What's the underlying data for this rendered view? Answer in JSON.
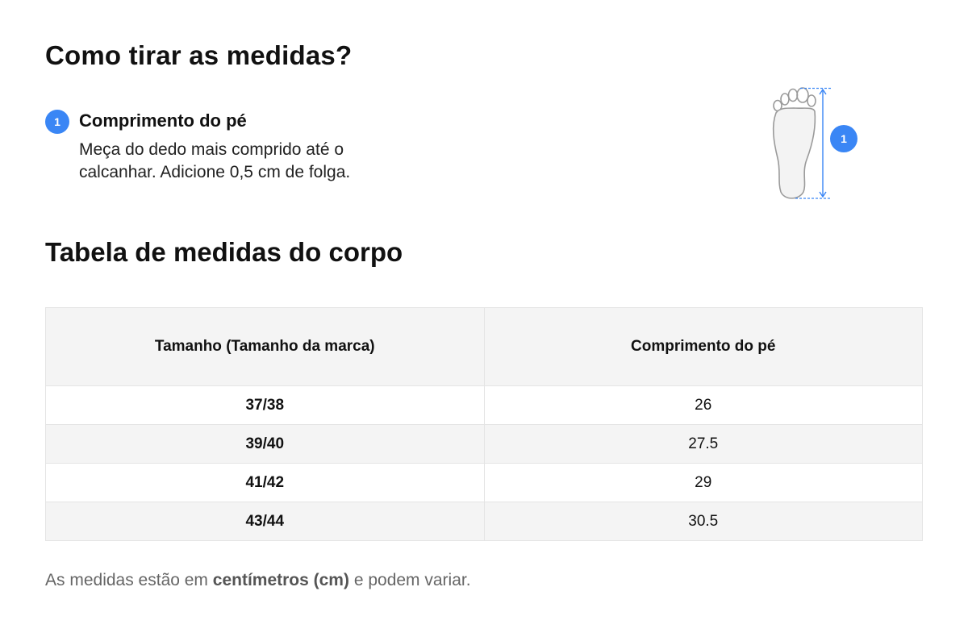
{
  "heading_how": "Como tirar as medidas?",
  "step": {
    "number": "1",
    "title": "Comprimento do pé",
    "description": "Meça do dedo mais comprido até o calcanhar. Adicione 0,5 cm de folga."
  },
  "figure": {
    "icon": "foot-outline-icon",
    "badge": "1",
    "accent_color": "#3a86f5"
  },
  "heading_table": "Tabela de medidas do corpo",
  "table": {
    "headers": [
      "Tamanho (Tamanho da marca)",
      "Comprimento do pé"
    ],
    "rows": [
      [
        "37/38",
        "26"
      ],
      [
        "39/40",
        "27.5"
      ],
      [
        "41/42",
        "29"
      ],
      [
        "43/44",
        "30.5"
      ]
    ]
  },
  "footnote": {
    "prefix": "As medidas estão em ",
    "bold": "centímetros (cm)",
    "suffix": " e podem variar."
  }
}
